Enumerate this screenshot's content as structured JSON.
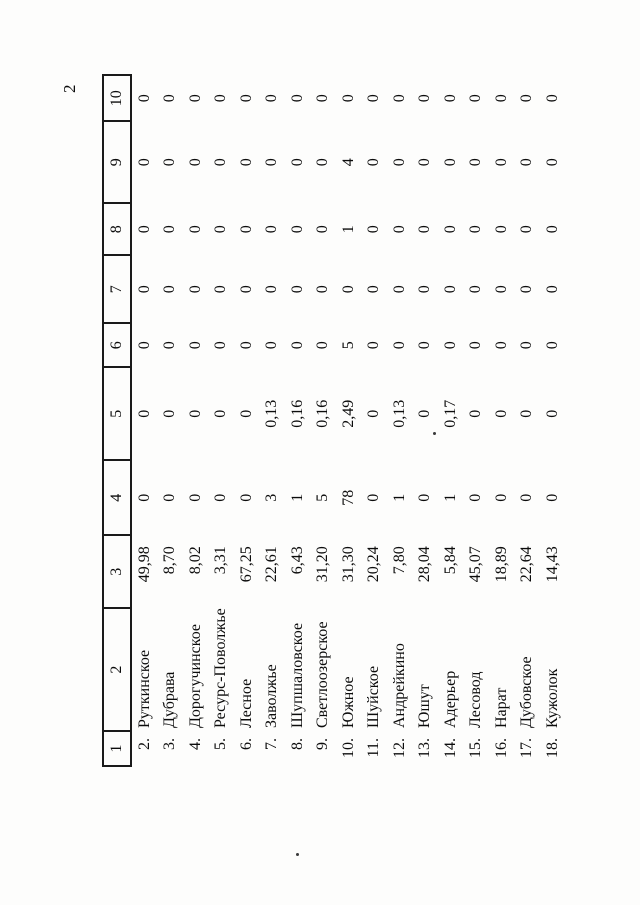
{
  "page": {
    "page_number": "2"
  },
  "table": {
    "column_headers": [
      "1",
      "2",
      "3",
      "4",
      "5",
      "6",
      "7",
      "8",
      "9",
      "10"
    ],
    "rows": [
      [
        "2.",
        "Руткинское",
        "49,98",
        "0",
        "0",
        "0",
        "0",
        "0",
        "0",
        "0"
      ],
      [
        "3.",
        "Дубрава",
        "8,70",
        "0",
        "0",
        "0",
        "0",
        "0",
        "0",
        "0"
      ],
      [
        "4.",
        "Дорогучинское",
        "8,02",
        "0",
        "0",
        "0",
        "0",
        "0",
        "0",
        "0"
      ],
      [
        "5.",
        "Ресурс-Поволжье",
        "3,31",
        "0",
        "0",
        "0",
        "0",
        "0",
        "0",
        "0"
      ],
      [
        "6.",
        "Лесное",
        "67,25",
        "0",
        "0",
        "0",
        "0",
        "0",
        "0",
        "0"
      ],
      [
        "7.",
        "Заволжье",
        "22,61",
        "3",
        "0,13",
        "0",
        "0",
        "0",
        "0",
        "0"
      ],
      [
        "8.",
        "Шупшаловское",
        "6,43",
        "1",
        "0,16",
        "0",
        "0",
        "0",
        "0",
        "0"
      ],
      [
        "9.",
        "Светлоозерское",
        "31,20",
        "5",
        "0,16",
        "0",
        "0",
        "0",
        "0",
        "0"
      ],
      [
        "10.",
        "Южное",
        "31,30",
        "78",
        "2,49",
        "5",
        "0",
        "1",
        "4",
        "0"
      ],
      [
        "11.",
        "Шуйское",
        "20,24",
        "0",
        "0",
        "0",
        "0",
        "0",
        "0",
        "0"
      ],
      [
        "12.",
        "Андрейкино",
        "7,80",
        "1",
        "0,13",
        "0",
        "0",
        "0",
        "0",
        "0"
      ],
      [
        "13.",
        "Юшут",
        "28,04",
        "0",
        "0",
        "0",
        "0",
        "0",
        "0",
        "0"
      ],
      [
        "14.",
        "Адерьер",
        "5,84",
        "1",
        "0,17",
        "0",
        "0",
        "0",
        "0",
        "0"
      ],
      [
        "15.",
        "Лесовод",
        "45,07",
        "0",
        "0",
        "0",
        "0",
        "0",
        "0",
        "0"
      ],
      [
        "16.",
        "Нарат",
        "18,89",
        "0",
        "0",
        "0",
        "0",
        "0",
        "0",
        "0"
      ],
      [
        "17.",
        "Дубовское",
        "22,64",
        "0",
        "0",
        "0",
        "0",
        "0",
        "0",
        "0"
      ],
      [
        "18.",
        "Кужолок",
        "14,43",
        "0",
        "0",
        "0",
        "0",
        "0",
        "0",
        "0"
      ]
    ]
  }
}
